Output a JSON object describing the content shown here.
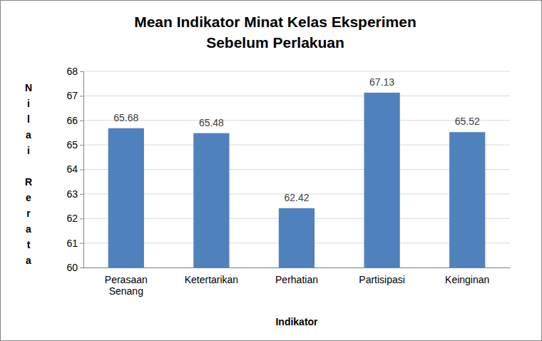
{
  "chart_data": {
    "type": "bar",
    "title": "Mean Indikator Minat Kelas Eksperimen\nSebelum Perlakuan",
    "x_label": "Indikator",
    "y_label": "Nilai Rerata",
    "categories": [
      "Perasaan Senang",
      "Ketertarikan",
      "Perhatian",
      "Partisipasi",
      "Keinginan"
    ],
    "values": [
      65.68,
      65.48,
      62.42,
      67.13,
      65.52
    ],
    "color": "#4f81bd",
    "ylim": [
      60,
      68
    ],
    "yticks": [
      60,
      61,
      62,
      63,
      64,
      65,
      66,
      67,
      68
    ],
    "grid": true,
    "data_labels": true
  }
}
